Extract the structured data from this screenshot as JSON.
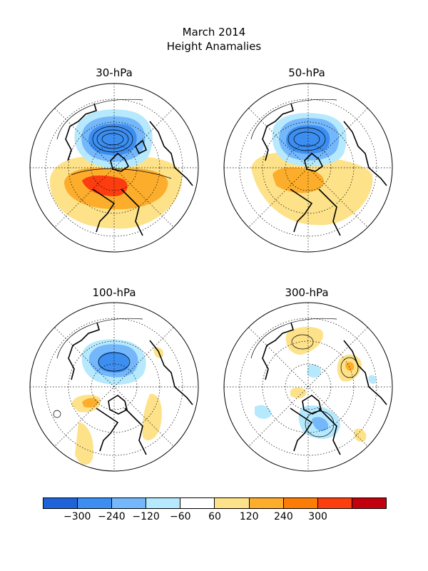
{
  "title": "March 2014",
  "subtitle": "Height Anamalies",
  "panels": [
    {
      "label": "30-hPa"
    },
    {
      "label": "50-hPa"
    },
    {
      "label": "100-hPa"
    },
    {
      "label": "300-hPa"
    }
  ],
  "colorbar": {
    "colors": [
      "#1f63d9",
      "#3c8ef0",
      "#74b7fb",
      "#b6e9fd",
      "#ffffff",
      "#fde28a",
      "#fcad2c",
      "#fb7c06",
      "#fb3d10",
      "#c2000e"
    ],
    "tick_labels": [
      "-300",
      "-240",
      "-120",
      "-60",
      "60",
      "120",
      "240",
      "300"
    ]
  },
  "map_colors": {
    "coast": "#000000",
    "grid": "#000000"
  }
}
